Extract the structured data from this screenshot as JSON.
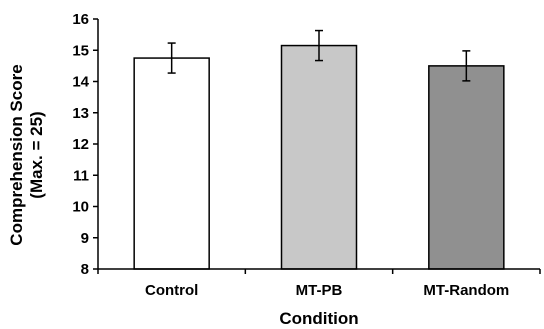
{
  "chart_data": {
    "type": "bar",
    "title": "",
    "xlabel": "Condition",
    "ylabel_line1": "Comprehension Score",
    "ylabel_line2": "(Max. = 25)",
    "categories": [
      "Control",
      "MT-PB",
      "MT-Random"
    ],
    "values": [
      14.75,
      15.15,
      14.5
    ],
    "error": [
      0.48,
      0.48,
      0.48
    ],
    "ylim": [
      8,
      16
    ],
    "yticks": [
      8,
      9,
      10,
      11,
      12,
      13,
      14,
      15,
      16
    ],
    "grid": false,
    "legend": "none",
    "colors": [
      "#ffffff",
      "#c8c8c8",
      "#909090"
    ],
    "bar_edge_color": "#000000"
  }
}
